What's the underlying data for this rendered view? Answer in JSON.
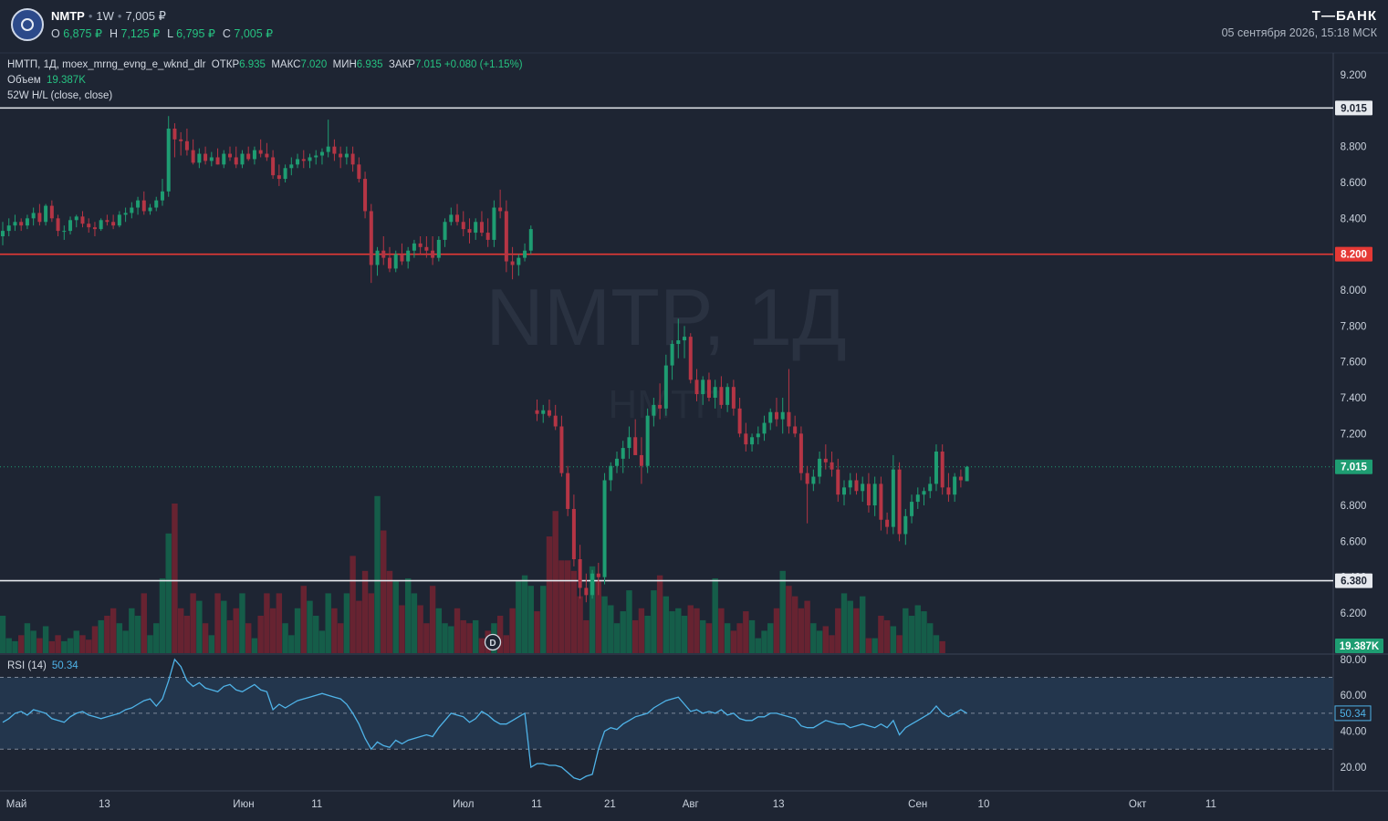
{
  "header": {
    "ticker": "NMTP",
    "interval": "1W",
    "price": "7,005 ₽",
    "ohlc": [
      {
        "k": "O",
        "v": "6,875 ₽"
      },
      {
        "k": "H",
        "v": "7,125 ₽"
      },
      {
        "k": "L",
        "v": "6,795 ₽"
      },
      {
        "k": "C",
        "v": "7,005 ₽"
      }
    ],
    "brand": "Т—БАНК",
    "datetime": "05 сентября 2026, 15:18 МСК"
  },
  "legend": {
    "symbol_line": "НМТП, 1Д, moex_mrng_evng_e_wknd_dlr",
    "open_label": "ОТКР",
    "open": "6.935",
    "high_label": "МАКС",
    "high": "7.020",
    "low_label": "МИН",
    "low": "6.935",
    "close_label": "ЗАКР",
    "close": "7.015",
    "change": "+0.080 (+1.15%)",
    "volume_label": "Объем",
    "volume": "19.387K",
    "indicator": "52W H/L (close, close)",
    "rsi_label": "RSI (14)",
    "rsi_value": "50.34"
  },
  "watermark": {
    "main": "NMTP, 1Д",
    "sub": "НМТП"
  },
  "colors": {
    "up": "#1e9d72",
    "down": "#b53545",
    "rsi": "#4fb3e8",
    "price_line": "#1e9d72",
    "level_red": "#e53935",
    "level_white": "#e6e9ee"
  },
  "chart_data": {
    "type": "candlestick",
    "price_axis": {
      "min": 6.0,
      "max": 9.3,
      "ticks": [
        6.2,
        6.4,
        6.6,
        6.8,
        7.0,
        7.2,
        7.4,
        7.6,
        7.8,
        8.0,
        8.2,
        8.4,
        8.6,
        8.8,
        9.0,
        9.2
      ]
    },
    "price_tick_labels": [
      "6.200",
      "6.400",
      "6.600",
      "6.800",
      "7.000",
      "7.200",
      "7.400",
      "7.600",
      "7.800",
      "8.000",
      "8.200",
      "8.400",
      "8.600",
      "8.800",
      "9.000",
      "9.200"
    ],
    "levels": [
      {
        "value": 9.015,
        "label": "9.015",
        "color": "white"
      },
      {
        "value": 8.2,
        "label": "8.200",
        "color": "red"
      },
      {
        "value": 6.38,
        "label": "6.380",
        "color": "white"
      }
    ],
    "last_price": {
      "value": 7.015,
      "label": "7.015"
    },
    "volume_badge": "19.387K",
    "x_labels": [
      {
        "label": "Май",
        "date": "2026-05-01"
      },
      {
        "label": "13",
        "date": "2026-05-13"
      },
      {
        "label": "Июн",
        "date": "2026-06-01"
      },
      {
        "label": "11",
        "date": "2026-06-11"
      },
      {
        "label": "Июл",
        "date": "2026-07-01"
      },
      {
        "label": "11",
        "date": "2026-07-11"
      },
      {
        "label": "21",
        "date": "2026-07-21"
      },
      {
        "label": "Авг",
        "date": "2026-08-01"
      },
      {
        "label": "13",
        "date": "2026-08-13"
      },
      {
        "label": "Сен",
        "date": "2026-09-01"
      },
      {
        "label": "10",
        "date": "2026-09-10"
      },
      {
        "label": "Окт",
        "date": "2026-10-01"
      },
      {
        "label": "11",
        "date": "2026-10-11"
      }
    ],
    "candles_ohlc": [
      [
        8.3,
        8.38,
        8.25,
        8.33
      ],
      [
        8.33,
        8.4,
        8.3,
        8.36
      ],
      [
        8.36,
        8.42,
        8.33,
        8.38
      ],
      [
        8.38,
        8.4,
        8.33,
        8.36
      ],
      [
        8.36,
        8.42,
        8.34,
        8.4
      ],
      [
        8.4,
        8.46,
        8.36,
        8.43
      ],
      [
        8.43,
        8.48,
        8.36,
        8.38
      ],
      [
        8.38,
        8.48,
        8.36,
        8.47
      ],
      [
        8.47,
        8.5,
        8.38,
        8.4
      ],
      [
        8.4,
        8.42,
        8.3,
        8.33
      ],
      [
        8.33,
        8.36,
        8.28,
        8.33
      ],
      [
        8.33,
        8.41,
        8.31,
        8.39
      ],
      [
        8.39,
        8.42,
        8.35,
        8.41
      ],
      [
        8.41,
        8.44,
        8.35,
        8.37
      ],
      [
        8.37,
        8.4,
        8.32,
        8.35
      ],
      [
        8.35,
        8.38,
        8.3,
        8.34
      ],
      [
        8.34,
        8.4,
        8.33,
        8.39
      ],
      [
        8.39,
        8.42,
        8.36,
        8.38
      ],
      [
        8.38,
        8.42,
        8.34,
        8.36
      ],
      [
        8.36,
        8.44,
        8.35,
        8.42
      ],
      [
        8.42,
        8.46,
        8.38,
        8.43
      ],
      [
        8.43,
        8.49,
        8.4,
        8.46
      ],
      [
        8.46,
        8.52,
        8.42,
        8.5
      ],
      [
        8.5,
        8.55,
        8.42,
        8.44
      ],
      [
        8.44,
        8.48,
        8.42,
        8.46
      ],
      [
        8.46,
        8.52,
        8.44,
        8.5
      ],
      [
        8.5,
        8.62,
        8.47,
        8.55
      ],
      [
        8.55,
        8.97,
        8.52,
        8.9
      ],
      [
        8.9,
        8.93,
        8.74,
        8.84
      ],
      [
        8.84,
        8.88,
        8.75,
        8.83
      ],
      [
        8.83,
        8.9,
        8.75,
        8.78
      ],
      [
        8.78,
        8.84,
        8.7,
        8.71
      ],
      [
        8.71,
        8.79,
        8.68,
        8.76
      ],
      [
        8.76,
        8.8,
        8.7,
        8.72
      ],
      [
        8.72,
        8.77,
        8.69,
        8.74
      ],
      [
        8.74,
        8.79,
        8.7,
        8.7
      ],
      [
        8.7,
        8.78,
        8.68,
        8.76
      ],
      [
        8.76,
        8.8,
        8.72,
        8.74
      ],
      [
        8.74,
        8.8,
        8.68,
        8.7
      ],
      [
        8.7,
        8.78,
        8.68,
        8.76
      ],
      [
        8.76,
        8.8,
        8.72,
        8.73
      ],
      [
        8.73,
        8.8,
        8.7,
        8.78
      ],
      [
        8.78,
        8.84,
        8.74,
        8.76
      ],
      [
        8.76,
        8.82,
        8.72,
        8.74
      ],
      [
        8.74,
        8.78,
        8.62,
        8.64
      ],
      [
        8.64,
        8.7,
        8.58,
        8.62
      ],
      [
        8.62,
        8.7,
        8.6,
        8.68
      ],
      [
        8.68,
        8.74,
        8.64,
        8.7
      ],
      [
        8.7,
        8.76,
        8.68,
        8.73
      ],
      [
        8.73,
        8.78,
        8.68,
        8.72
      ],
      [
        8.72,
        8.76,
        8.68,
        8.74
      ],
      [
        8.74,
        8.78,
        8.7,
        8.75
      ],
      [
        8.75,
        8.79,
        8.7,
        8.77
      ],
      [
        8.77,
        8.95,
        8.74,
        8.8
      ],
      [
        8.8,
        8.84,
        8.72,
        8.76
      ],
      [
        8.76,
        8.8,
        8.68,
        8.74
      ],
      [
        8.74,
        8.8,
        8.7,
        8.76
      ],
      [
        8.76,
        8.8,
        8.66,
        8.7
      ],
      [
        8.7,
        8.74,
        8.6,
        8.62
      ],
      [
        8.62,
        8.66,
        8.4,
        8.44
      ],
      [
        8.44,
        8.48,
        8.04,
        8.14
      ],
      [
        8.14,
        8.24,
        8.08,
        8.22
      ],
      [
        8.22,
        8.3,
        8.14,
        8.18
      ],
      [
        8.18,
        8.24,
        8.1,
        8.12
      ],
      [
        8.12,
        8.22,
        8.1,
        8.2
      ],
      [
        8.2,
        8.26,
        8.14,
        8.16
      ],
      [
        8.16,
        8.24,
        8.12,
        8.22
      ],
      [
        8.22,
        8.28,
        8.18,
        8.26
      ],
      [
        8.26,
        8.3,
        8.2,
        8.24
      ],
      [
        8.24,
        8.3,
        8.18,
        8.22
      ],
      [
        8.22,
        8.3,
        8.14,
        8.18
      ],
      [
        8.18,
        8.3,
        8.16,
        8.28
      ],
      [
        8.28,
        8.4,
        8.24,
        8.38
      ],
      [
        8.38,
        8.46,
        8.36,
        8.42
      ],
      [
        8.42,
        8.48,
        8.36,
        8.38
      ],
      [
        8.38,
        8.44,
        8.3,
        8.34
      ],
      [
        8.34,
        8.4,
        8.26,
        8.32
      ],
      [
        8.32,
        8.4,
        8.28,
        8.38
      ],
      [
        8.38,
        8.44,
        8.3,
        8.32
      ],
      [
        8.32,
        8.4,
        8.24,
        8.28
      ],
      [
        8.28,
        8.5,
        8.24,
        8.46
      ],
      [
        8.46,
        8.56,
        8.4,
        8.44
      ],
      [
        8.44,
        8.5,
        8.1,
        8.16
      ],
      [
        8.16,
        8.24,
        8.06,
        8.14
      ],
      [
        8.14,
        8.2,
        8.08,
        8.18
      ],
      [
        8.18,
        8.26,
        8.16,
        8.22
      ],
      [
        8.22,
        8.36,
        8.2,
        8.34
      ],
      [
        7.33,
        7.39,
        7.27,
        7.31
      ],
      [
        7.31,
        7.36,
        7.26,
        7.33
      ],
      [
        7.33,
        7.39,
        7.29,
        7.3
      ],
      [
        7.3,
        7.36,
        7.22,
        7.24
      ],
      [
        7.24,
        7.3,
        6.96,
        6.98
      ],
      [
        6.98,
        7.02,
        6.74,
        6.78
      ],
      [
        6.78,
        6.86,
        6.46,
        6.5
      ],
      [
        6.5,
        6.58,
        6.28,
        6.34
      ],
      [
        6.34,
        6.42,
        6.26,
        6.3
      ],
      [
        6.3,
        6.44,
        6.28,
        6.42
      ],
      [
        6.42,
        6.48,
        6.3,
        6.4
      ],
      [
        6.4,
        6.98,
        6.36,
        6.94
      ],
      [
        6.94,
        7.04,
        6.88,
        7.02
      ],
      [
        7.02,
        7.1,
        6.98,
        7.06
      ],
      [
        7.06,
        7.16,
        6.98,
        7.12
      ],
      [
        7.12,
        7.24,
        7.06,
        7.18
      ],
      [
        7.18,
        7.28,
        7.1,
        7.08
      ],
      [
        7.08,
        7.18,
        6.92,
        7.02
      ],
      [
        7.02,
        7.34,
        6.98,
        7.3
      ],
      [
        7.3,
        7.4,
        7.24,
        7.36
      ],
      [
        7.36,
        7.48,
        7.28,
        7.34
      ],
      [
        7.34,
        7.64,
        7.3,
        7.58
      ],
      [
        7.58,
        7.72,
        7.5,
        7.7
      ],
      [
        7.7,
        7.84,
        7.62,
        7.72
      ],
      [
        7.72,
        7.8,
        7.62,
        7.74
      ],
      [
        7.74,
        7.76,
        7.48,
        7.5
      ],
      [
        7.5,
        7.56,
        7.38,
        7.42
      ],
      [
        7.42,
        7.52,
        7.36,
        7.5
      ],
      [
        7.5,
        7.54,
        7.38,
        7.4
      ],
      [
        7.4,
        7.5,
        7.34,
        7.46
      ],
      [
        7.46,
        7.52,
        7.34,
        7.36
      ],
      [
        7.36,
        7.48,
        7.32,
        7.46
      ],
      [
        7.46,
        7.5,
        7.3,
        7.34
      ],
      [
        7.34,
        7.4,
        7.18,
        7.2
      ],
      [
        7.2,
        7.26,
        7.1,
        7.14
      ],
      [
        7.14,
        7.2,
        7.1,
        7.18
      ],
      [
        7.18,
        7.24,
        7.14,
        7.2
      ],
      [
        7.2,
        7.3,
        7.16,
        7.26
      ],
      [
        7.26,
        7.34,
        7.22,
        7.32
      ],
      [
        7.32,
        7.4,
        7.24,
        7.28
      ],
      [
        7.28,
        7.4,
        7.2,
        7.32
      ],
      [
        7.32,
        7.56,
        7.2,
        7.24
      ],
      [
        7.24,
        7.3,
        7.18,
        7.2
      ],
      [
        7.2,
        7.24,
        6.94,
        6.98
      ],
      [
        6.98,
        7.02,
        6.7,
        6.92
      ],
      [
        6.92,
        7.0,
        6.88,
        6.96
      ],
      [
        6.96,
        7.1,
        6.92,
        7.06
      ],
      [
        7.06,
        7.14,
        7.0,
        7.04
      ],
      [
        7.04,
        7.1,
        6.96,
        7.0
      ],
      [
        7.0,
        7.06,
        6.82,
        6.86
      ],
      [
        6.86,
        6.94,
        6.8,
        6.9
      ],
      [
        6.9,
        6.98,
        6.86,
        6.94
      ],
      [
        6.94,
        6.98,
        6.86,
        6.88
      ],
      [
        6.88,
        6.96,
        6.82,
        6.92
      ],
      [
        6.92,
        6.98,
        6.76,
        6.8
      ],
      [
        6.8,
        6.96,
        6.74,
        6.92
      ],
      [
        6.92,
        6.96,
        6.66,
        6.72
      ],
      [
        6.72,
        6.76,
        6.64,
        6.68
      ],
      [
        6.68,
        7.08,
        6.64,
        7.0
      ],
      [
        7.0,
        7.04,
        6.6,
        6.64
      ],
      [
        6.64,
        6.78,
        6.58,
        6.74
      ],
      [
        6.74,
        6.86,
        6.7,
        6.82
      ],
      [
        6.82,
        6.9,
        6.78,
        6.86
      ],
      [
        6.86,
        6.9,
        6.8,
        6.88
      ],
      [
        6.88,
        6.96,
        6.84,
        6.92
      ],
      [
        6.92,
        7.14,
        6.88,
        7.1
      ],
      [
        7.1,
        7.14,
        6.86,
        6.9
      ],
      [
        6.9,
        6.98,
        6.82,
        6.86
      ],
      [
        6.86,
        6.98,
        6.82,
        6.96
      ],
      [
        6.96,
        7.0,
        6.9,
        6.94
      ],
      [
        6.935,
        7.02,
        6.935,
        7.015
      ]
    ],
    "volume_relative": [
      0.25,
      0.1,
      0.08,
      0.12,
      0.2,
      0.15,
      0.1,
      0.18,
      0.08,
      0.12,
      0.08,
      0.1,
      0.15,
      0.12,
      0.09,
      0.18,
      0.22,
      0.25,
      0.3,
      0.2,
      0.15,
      0.3,
      0.25,
      0.4,
      0.12,
      0.2,
      0.5,
      0.8,
      1.0,
      0.3,
      0.25,
      0.4,
      0.35,
      0.2,
      0.12,
      0.4,
      0.35,
      0.22,
      0.3,
      0.4,
      0.2,
      0.1,
      0.25,
      0.4,
      0.3,
      0.4,
      0.2,
      0.12,
      0.3,
      0.45,
      0.35,
      0.25,
      0.15,
      0.4,
      0.3,
      0.2,
      0.4,
      0.65,
      0.35,
      0.55,
      0.4,
      1.05,
      0.82,
      0.55,
      0.48,
      0.32,
      0.5,
      0.4,
      0.32,
      0.2,
      0.45,
      0.3,
      0.2,
      0.18,
      0.3,
      0.22,
      0.2,
      0.22,
      0.1,
      0.15,
      0.2,
      0.25,
      0.12,
      0.3,
      0.48,
      0.52,
      0.45,
      0.28,
      0.45,
      0.78,
      0.95,
      0.62,
      0.62,
      0.55,
      0.38,
      0.22,
      0.58,
      0.48,
      0.38,
      0.32,
      0.2,
      0.28,
      0.42,
      0.22,
      0.3,
      0.25,
      0.42,
      0.52,
      0.38,
      0.28,
      0.3,
      0.25,
      0.32,
      0.3,
      0.22,
      0.2,
      0.5,
      0.3,
      0.2,
      0.15,
      0.2,
      0.28,
      0.22,
      0.1,
      0.15,
      0.2,
      0.3,
      0.55,
      0.45,
      0.38,
      0.3,
      0.35,
      0.2,
      0.15,
      0.18,
      0.12,
      0.3,
      0.4,
      0.35,
      0.3,
      0.38,
      0.1,
      0.1,
      0.25,
      0.22,
      0.18,
      0.12,
      0.3,
      0.25,
      0.32,
      0.28,
      0.2,
      0.12,
      0.08
    ],
    "rsi_axis": {
      "min": 10,
      "max": 80,
      "ticks": [
        20,
        40,
        60,
        80
      ],
      "tick_labels": [
        "20.00",
        "40.00",
        "60.00",
        "80.00"
      ],
      "bands": [
        30,
        50,
        70
      ]
    },
    "rsi_values": [
      45,
      47,
      50,
      51,
      49,
      52,
      51,
      50,
      47,
      46,
      45,
      48,
      50,
      51,
      49,
      48,
      47,
      48,
      49,
      50,
      52,
      53,
      55,
      57,
      58,
      54,
      58,
      68,
      80,
      76,
      68,
      65,
      67,
      64,
      63,
      62,
      65,
      66,
      63,
      62,
      64,
      66,
      63,
      62,
      52,
      55,
      53,
      55,
      57,
      58,
      59,
      60,
      61,
      60,
      59,
      58,
      55,
      50,
      44,
      36,
      30,
      34,
      32,
      31,
      35,
      33,
      35,
      36,
      37,
      38,
      37,
      42,
      46,
      50,
      49,
      48,
      45,
      47,
      51,
      49,
      46,
      44,
      44,
      46,
      48,
      50,
      20,
      22,
      22,
      21,
      21,
      20,
      17,
      14,
      13,
      15,
      16,
      30,
      40,
      42,
      41,
      44,
      46,
      48,
      49,
      50,
      53,
      55,
      57,
      58,
      59,
      55,
      51,
      52,
      50,
      51,
      50,
      52,
      49,
      50,
      47,
      46,
      46,
      48,
      48,
      50,
      50,
      49,
      48,
      47,
      43,
      42,
      42,
      44,
      46,
      45,
      44,
      44,
      42,
      43,
      44,
      43,
      42,
      44,
      42,
      46,
      38,
      42,
      44,
      46,
      48,
      50,
      54,
      50,
      48,
      50,
      52,
      50
    ]
  }
}
